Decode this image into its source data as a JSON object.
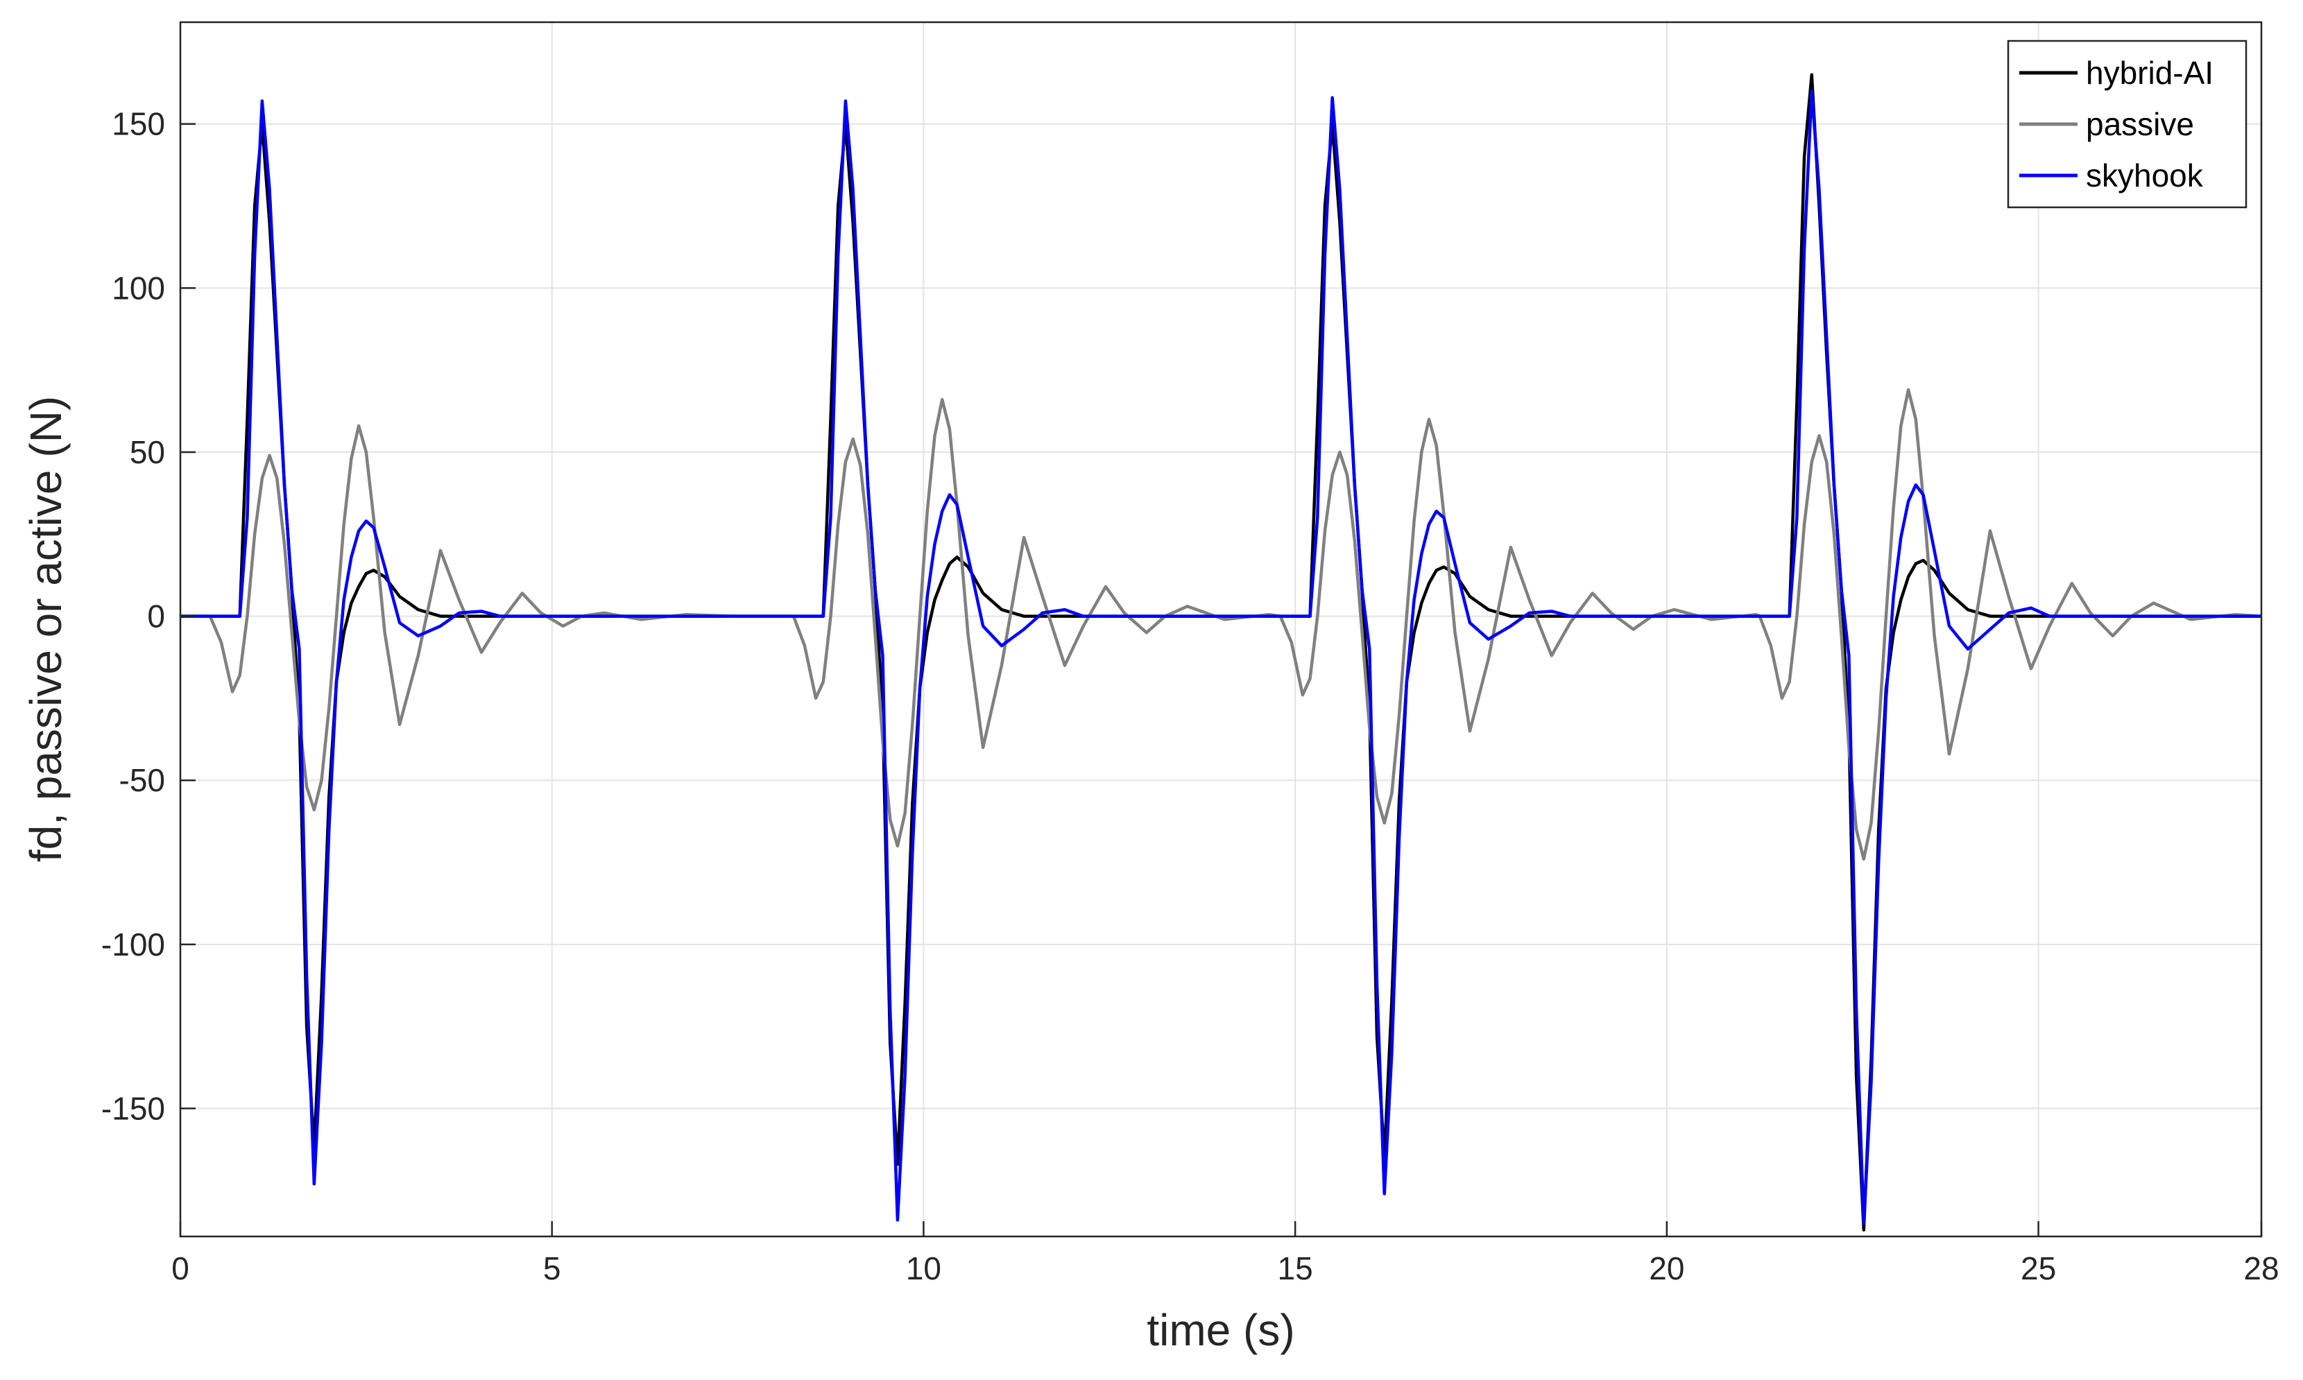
{
  "chart_data": {
    "type": "line",
    "x_label": "time (s)",
    "y_label": "fd, passive or active (N)",
    "xlim": [
      0,
      28
    ],
    "ylim": [
      -189,
      181
    ],
    "xticks": [
      0,
      5,
      10,
      15,
      20,
      25,
      28
    ],
    "yticks": [
      -150,
      -100,
      -50,
      0,
      50,
      100,
      150
    ],
    "grid": true,
    "legend": "northeast",
    "x": [
      0,
      0.4,
      0.55,
      0.7,
      0.8,
      0.9,
      1,
      1.1,
      1.2,
      1.3,
      1.4,
      1.5,
      1.6,
      1.7,
      1.8,
      1.9,
      2,
      2.1,
      2.2,
      2.3,
      2.4,
      2.5,
      2.6,
      2.75,
      2.95,
      3.2,
      3.5,
      3.75,
      4.05,
      4.3,
      4.6,
      4.85,
      5.15,
      5.4,
      5.7,
      6.2,
      6.8,
      7.5,
      8.25,
      8.4,
      8.55,
      8.65,
      8.75,
      8.85,
      8.95,
      9.05,
      9.15,
      9.25,
      9.35,
      9.45,
      9.55,
      9.65,
      9.75,
      9.85,
      9.95,
      10.05,
      10.15,
      10.25,
      10.35,
      10.45,
      10.6,
      10.8,
      11.05,
      11.35,
      11.6,
      11.9,
      12.15,
      12.45,
      12.7,
      13,
      13.25,
      13.55,
      14.05,
      14.65,
      14.8,
      14.95,
      15.1,
      15.2,
      15.3,
      15.4,
      15.5,
      15.6,
      15.7,
      15.8,
      15.9,
      16,
      16.1,
      16.2,
      16.3,
      16.4,
      16.5,
      16.6,
      16.7,
      16.8,
      16.9,
      17,
      17.15,
      17.35,
      17.6,
      17.9,
      18.15,
      18.45,
      18.7,
      19,
      19.25,
      19.55,
      19.8,
      20.1,
      20.6,
      21.2,
      21.25,
      21.4,
      21.55,
      21.65,
      21.75,
      21.85,
      21.95,
      22.05,
      22.15,
      22.25,
      22.35,
      22.45,
      22.55,
      22.65,
      22.75,
      22.85,
      22.95,
      23.05,
      23.15,
      23.25,
      23.35,
      23.45,
      23.6,
      23.8,
      24.05,
      24.35,
      24.6,
      24.9,
      25.15,
      25.45,
      25.7,
      26,
      26.25,
      26.55,
      27.05,
      27.65,
      28
    ],
    "series": [
      {
        "name": "hybrid-AI",
        "color": "#000000",
        "values": [
          0,
          0,
          0,
          0,
          0,
          60,
          125,
          150,
          120,
          80,
          40,
          8,
          -30,
          -125,
          -162,
          -115,
          -55,
          -20,
          -5,
          4,
          9,
          13,
          14,
          12,
          6,
          2,
          0,
          0,
          0,
          0,
          0,
          0,
          0,
          0,
          0,
          0,
          0,
          0,
          0,
          0,
          0,
          0,
          60,
          125,
          150,
          120,
          80,
          40,
          8,
          -30,
          -130,
          -167,
          -118,
          -57,
          -22,
          -5,
          5,
          11,
          16,
          18,
          15,
          7,
          2,
          0,
          0,
          0,
          0,
          0,
          0,
          0,
          0,
          0,
          0,
          0,
          0,
          0,
          0,
          0,
          60,
          125,
          150,
          120,
          80,
          40,
          8,
          -30,
          -128,
          -165,
          -117,
          -56,
          -20,
          -5,
          4,
          10,
          14,
          15,
          13,
          6,
          2,
          0,
          0,
          0,
          0,
          0,
          0,
          0,
          0,
          0,
          0,
          0,
          0,
          0,
          0,
          0,
          65,
          140,
          165,
          125,
          80,
          40,
          8,
          -35,
          -140,
          -187,
          -135,
          -65,
          -22,
          -5,
          5,
          12,
          16,
          17,
          14,
          7,
          2,
          0,
          0,
          0,
          0,
          0,
          0,
          0,
          0,
          0,
          0,
          0,
          0
        ]
      },
      {
        "name": "passive",
        "color": "#808080",
        "values": [
          0,
          0,
          -8,
          -23,
          -18,
          0,
          25,
          42,
          49,
          42,
          22,
          -5,
          -32,
          -52,
          -59,
          -50,
          -28,
          0,
          28,
          48,
          58,
          50,
          30,
          -5,
          -33,
          -12,
          20,
          5,
          -11,
          -2,
          7,
          1,
          -3,
          0,
          1,
          -1,
          0.5,
          0,
          0,
          -9,
          -25,
          -20,
          0,
          28,
          47,
          54,
          46,
          25,
          -6,
          -38,
          -62,
          -70,
          -60,
          -33,
          0,
          32,
          55,
          66,
          57,
          34,
          -6,
          -40,
          -15,
          24,
          6,
          -15,
          -3,
          9,
          1,
          -5,
          0,
          3,
          -1,
          0.5,
          0,
          -8,
          -24,
          -19,
          0,
          26,
          43,
          50,
          43,
          23,
          -5,
          -34,
          -55,
          -63,
          -54,
          -30,
          0,
          29,
          50,
          60,
          52,
          31,
          -5,
          -35,
          -13,
          21,
          5,
          -12,
          -2,
          7,
          1,
          -4,
          0,
          2,
          -1,
          0.5,
          0,
          -9,
          -25,
          -20,
          0,
          28,
          47,
          55,
          47,
          25,
          -6,
          -40,
          -65,
          -74,
          -63,
          -35,
          0,
          33,
          58,
          69,
          60,
          36,
          -6,
          -42,
          -16,
          26,
          6,
          -16,
          -3,
          10,
          1,
          -6,
          0,
          4,
          -1,
          0.5,
          0
        ]
      },
      {
        "name": "skyhook",
        "color": "#0000ff",
        "values": [
          0,
          0,
          0,
          0,
          0,
          30,
          110,
          157,
          130,
          85,
          40,
          8,
          -10,
          -110,
          -173,
          -130,
          -65,
          -20,
          5,
          18,
          26,
          29,
          27,
          15,
          -2,
          -6,
          -3,
          1,
          1.5,
          0,
          0,
          0,
          0,
          0,
          0,
          0,
          0,
          0,
          0,
          0,
          0,
          0,
          30,
          110,
          157,
          130,
          85,
          40,
          8,
          -12,
          -120,
          -184,
          -140,
          -72,
          -22,
          6,
          22,
          32,
          37,
          34,
          18,
          -3,
          -9,
          -4,
          1,
          2,
          0,
          0,
          0,
          0,
          0,
          0,
          0,
          0,
          0,
          0,
          0,
          0,
          30,
          110,
          158,
          130,
          85,
          40,
          8,
          -10,
          -112,
          -176,
          -133,
          -67,
          -20,
          5,
          19,
          28,
          32,
          30,
          16,
          -2,
          -7,
          -3,
          1,
          1.5,
          0,
          0,
          0,
          0,
          0,
          0,
          0,
          0,
          0,
          0,
          0,
          0,
          30,
          112,
          160,
          130,
          85,
          40,
          8,
          -12,
          -120,
          -185,
          -142,
          -75,
          -25,
          6,
          24,
          35,
          40,
          37,
          20,
          -3,
          -10,
          -4,
          1,
          2.5,
          0,
          0,
          0,
          0,
          0,
          0,
          0,
          0,
          0
        ]
      }
    ]
  }
}
